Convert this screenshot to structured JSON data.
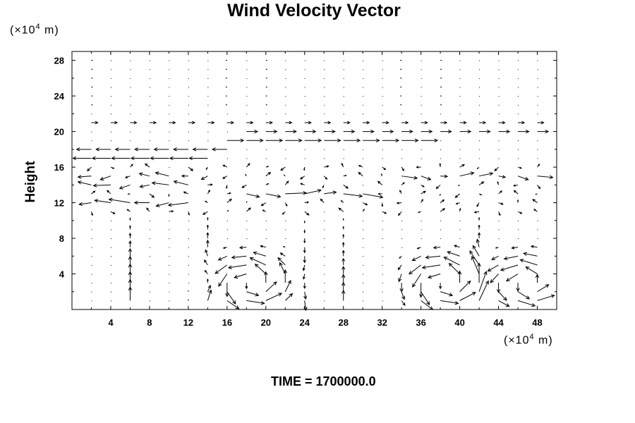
{
  "chart_data": {
    "type": "vector-field",
    "title": "Wind Velocity Vector",
    "ylabel": "Height",
    "xunit_prefix": "(×10",
    "xunit_exp": "4",
    "xunit_suffix": " m)",
    "yunit_prefix": "(×10",
    "yunit_exp": "4",
    "yunit_suffix": " m)",
    "xlim": [
      0,
      50
    ],
    "ylim": [
      0,
      29
    ],
    "xticks": [
      4,
      8,
      12,
      16,
      20,
      24,
      28,
      32,
      36,
      40,
      44,
      48
    ],
    "yticks": [
      4,
      8,
      12,
      16,
      20,
      24,
      28
    ],
    "grid": {
      "dx": 2,
      "dy": 1,
      "x_start": 2,
      "y_start": 1
    },
    "features": {
      "jet_rows": [
        {
          "y": 21,
          "u": 0.35,
          "x_from": 0,
          "x_to": 50
        },
        {
          "y": 20,
          "u": 0.6,
          "x_from": 18,
          "x_to": 50
        },
        {
          "y": 19,
          "u": 0.9,
          "x_from": 16,
          "x_to": 36
        },
        {
          "y": 18,
          "u": -0.8,
          "x_from": 0,
          "x_to": 16
        },
        {
          "y": 17,
          "u": -1.0,
          "x_from": 0,
          "x_to": 14
        },
        {
          "y": 15,
          "u": -0.5,
          "x_from": 0,
          "x_to": 14
        },
        {
          "y": 15,
          "u": 0.6,
          "x_from": 34,
          "x_to": 50
        },
        {
          "y": 14,
          "u": -0.7,
          "x_from": 0,
          "x_to": 12
        },
        {
          "y": 13,
          "u": 0.9,
          "x_from": 18,
          "x_to": 30
        },
        {
          "y": 12,
          "u": -0.9,
          "x_from": 0,
          "x_to": 12
        }
      ],
      "vortices": [
        {
          "cx": 18.5,
          "cy": 3,
          "r": 4,
          "strength": 1.0
        },
        {
          "cx": 38.5,
          "cy": 3,
          "r": 4,
          "strength": 1.0
        },
        {
          "cx": 47,
          "cy": 3,
          "r": 4,
          "strength": 1.0
        }
      ],
      "updrafts": [
        {
          "x": 6,
          "w": 0.8
        },
        {
          "x": 14,
          "w": 0.9
        },
        {
          "x": 24,
          "w": -0.7
        },
        {
          "x": 28,
          "w": 0.6
        },
        {
          "x": 42,
          "w": 0.9
        }
      ]
    }
  },
  "time_label": "TIME = 1700000.0"
}
